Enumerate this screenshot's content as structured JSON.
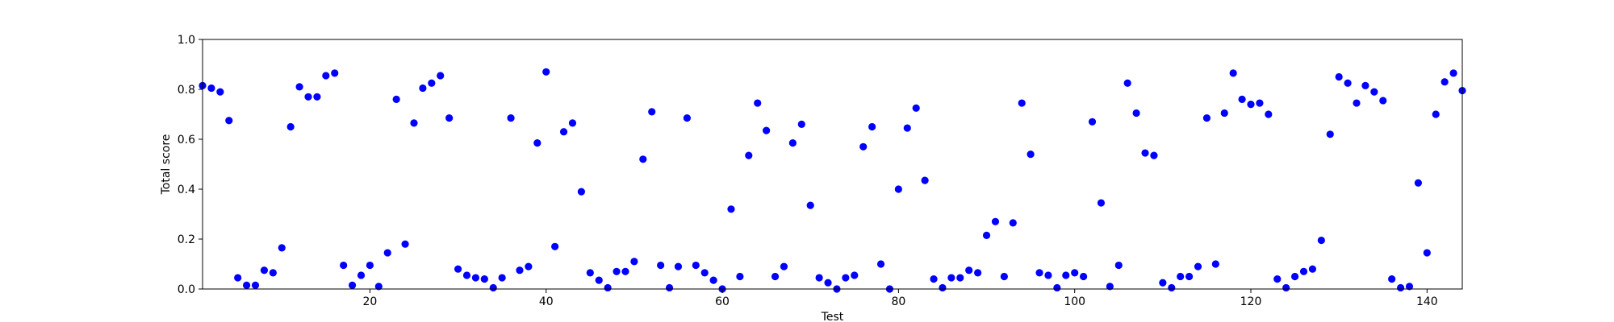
{
  "chart_data": {
    "type": "scatter",
    "title": "",
    "xlabel": "Test",
    "ylabel": "Total score",
    "xlim": [
      1,
      144
    ],
    "ylim": [
      0.0,
      1.0
    ],
    "x_ticks": [
      20,
      40,
      60,
      80,
      100,
      120,
      140
    ],
    "y_ticks": [
      0.0,
      0.2,
      0.4,
      0.6,
      0.8,
      1.0
    ],
    "x_tick_labels": [
      "20",
      "40",
      "60",
      "80",
      "100",
      "120",
      "140"
    ],
    "y_tick_labels": [
      "0.0",
      "0.2",
      "0.4",
      "0.6",
      "0.8",
      "1.0"
    ],
    "grid": false,
    "marker_color": "#0000ff",
    "points": [
      {
        "x": 1,
        "y": 0.815
      },
      {
        "x": 2,
        "y": 0.805
      },
      {
        "x": 3,
        "y": 0.79
      },
      {
        "x": 4,
        "y": 0.675
      },
      {
        "x": 5,
        "y": 0.045
      },
      {
        "x": 6,
        "y": 0.015
      },
      {
        "x": 7,
        "y": 0.015
      },
      {
        "x": 8,
        "y": 0.075
      },
      {
        "x": 9,
        "y": 0.065
      },
      {
        "x": 10,
        "y": 0.165
      },
      {
        "x": 11,
        "y": 0.65
      },
      {
        "x": 12,
        "y": 0.81
      },
      {
        "x": 13,
        "y": 0.77
      },
      {
        "x": 14,
        "y": 0.77
      },
      {
        "x": 15,
        "y": 0.855
      },
      {
        "x": 16,
        "y": 0.865
      },
      {
        "x": 17,
        "y": 0.095
      },
      {
        "x": 18,
        "y": 0.015
      },
      {
        "x": 19,
        "y": 0.055
      },
      {
        "x": 20,
        "y": 0.095
      },
      {
        "x": 21,
        "y": 0.01
      },
      {
        "x": 22,
        "y": 0.145
      },
      {
        "x": 23,
        "y": 0.76
      },
      {
        "x": 24,
        "y": 0.18
      },
      {
        "x": 25,
        "y": 0.665
      },
      {
        "x": 26,
        "y": 0.805
      },
      {
        "x": 27,
        "y": 0.825
      },
      {
        "x": 28,
        "y": 0.855
      },
      {
        "x": 29,
        "y": 0.685
      },
      {
        "x": 30,
        "y": 0.08
      },
      {
        "x": 31,
        "y": 0.055
      },
      {
        "x": 32,
        "y": 0.045
      },
      {
        "x": 33,
        "y": 0.04
      },
      {
        "x": 34,
        "y": 0.005
      },
      {
        "x": 35,
        "y": 0.045
      },
      {
        "x": 36,
        "y": 0.685
      },
      {
        "x": 37,
        "y": 0.075
      },
      {
        "x": 38,
        "y": 0.09
      },
      {
        "x": 39,
        "y": 0.585
      },
      {
        "x": 40,
        "y": 0.87
      },
      {
        "x": 41,
        "y": 0.17
      },
      {
        "x": 42,
        "y": 0.63
      },
      {
        "x": 43,
        "y": 0.665
      },
      {
        "x": 44,
        "y": 0.39
      },
      {
        "x": 45,
        "y": 0.065
      },
      {
        "x": 46,
        "y": 0.035
      },
      {
        "x": 47,
        "y": 0.005
      },
      {
        "x": 48,
        "y": 0.07
      },
      {
        "x": 49,
        "y": 0.07
      },
      {
        "x": 50,
        "y": 0.11
      },
      {
        "x": 51,
        "y": 0.52
      },
      {
        "x": 52,
        "y": 0.71
      },
      {
        "x": 53,
        "y": 0.095
      },
      {
        "x": 54,
        "y": 0.005
      },
      {
        "x": 55,
        "y": 0.09
      },
      {
        "x": 56,
        "y": 0.685
      },
      {
        "x": 57,
        "y": 0.095
      },
      {
        "x": 58,
        "y": 0.065
      },
      {
        "x": 59,
        "y": 0.035
      },
      {
        "x": 60,
        "y": 0.0
      },
      {
        "x": 61,
        "y": 0.32
      },
      {
        "x": 62,
        "y": 0.05
      },
      {
        "x": 63,
        "y": 0.535
      },
      {
        "x": 64,
        "y": 0.745
      },
      {
        "x": 65,
        "y": 0.635
      },
      {
        "x": 66,
        "y": 0.05
      },
      {
        "x": 67,
        "y": 0.09
      },
      {
        "x": 68,
        "y": 0.585
      },
      {
        "x": 69,
        "y": 0.66
      },
      {
        "x": 70,
        "y": 0.335
      },
      {
        "x": 71,
        "y": 0.045
      },
      {
        "x": 72,
        "y": 0.025
      },
      {
        "x": 73,
        "y": 0.0
      },
      {
        "x": 74,
        "y": 0.045
      },
      {
        "x": 75,
        "y": 0.055
      },
      {
        "x": 76,
        "y": 0.57
      },
      {
        "x": 77,
        "y": 0.65
      },
      {
        "x": 78,
        "y": 0.1
      },
      {
        "x": 79,
        "y": 0.0
      },
      {
        "x": 80,
        "y": 0.4
      },
      {
        "x": 81,
        "y": 0.645
      },
      {
        "x": 82,
        "y": 0.725
      },
      {
        "x": 83,
        "y": 0.435
      },
      {
        "x": 84,
        "y": 0.04
      },
      {
        "x": 85,
        "y": 0.005
      },
      {
        "x": 86,
        "y": 0.045
      },
      {
        "x": 87,
        "y": 0.045
      },
      {
        "x": 88,
        "y": 0.075
      },
      {
        "x": 89,
        "y": 0.065
      },
      {
        "x": 90,
        "y": 0.215
      },
      {
        "x": 91,
        "y": 0.27
      },
      {
        "x": 92,
        "y": 0.05
      },
      {
        "x": 93,
        "y": 0.265
      },
      {
        "x": 94,
        "y": 0.745
      },
      {
        "x": 95,
        "y": 0.54
      },
      {
        "x": 96,
        "y": 0.065
      },
      {
        "x": 97,
        "y": 0.055
      },
      {
        "x": 98,
        "y": 0.005
      },
      {
        "x": 99,
        "y": 0.055
      },
      {
        "x": 100,
        "y": 0.065
      },
      {
        "x": 101,
        "y": 0.05
      },
      {
        "x": 102,
        "y": 0.67
      },
      {
        "x": 103,
        "y": 0.345
      },
      {
        "x": 104,
        "y": 0.01
      },
      {
        "x": 105,
        "y": 0.095
      },
      {
        "x": 106,
        "y": 0.825
      },
      {
        "x": 107,
        "y": 0.705
      },
      {
        "x": 108,
        "y": 0.545
      },
      {
        "x": 109,
        "y": 0.535
      },
      {
        "x": 110,
        "y": 0.025
      },
      {
        "x": 111,
        "y": 0.005
      },
      {
        "x": 112,
        "y": 0.05
      },
      {
        "x": 113,
        "y": 0.05
      },
      {
        "x": 114,
        "y": 0.09
      },
      {
        "x": 115,
        "y": 0.685
      },
      {
        "x": 116,
        "y": 0.1
      },
      {
        "x": 117,
        "y": 0.705
      },
      {
        "x": 118,
        "y": 0.865
      },
      {
        "x": 119,
        "y": 0.76
      },
      {
        "x": 120,
        "y": 0.74
      },
      {
        "x": 121,
        "y": 0.745
      },
      {
        "x": 122,
        "y": 0.7
      },
      {
        "x": 123,
        "y": 0.04
      },
      {
        "x": 124,
        "y": 0.005
      },
      {
        "x": 125,
        "y": 0.05
      },
      {
        "x": 126,
        "y": 0.07
      },
      {
        "x": 127,
        "y": 0.08
      },
      {
        "x": 128,
        "y": 0.195
      },
      {
        "x": 129,
        "y": 0.62
      },
      {
        "x": 130,
        "y": 0.85
      },
      {
        "x": 131,
        "y": 0.825
      },
      {
        "x": 132,
        "y": 0.745
      },
      {
        "x": 133,
        "y": 0.815
      },
      {
        "x": 134,
        "y": 0.79
      },
      {
        "x": 135,
        "y": 0.755
      },
      {
        "x": 136,
        "y": 0.04
      },
      {
        "x": 137,
        "y": 0.005
      },
      {
        "x": 138,
        "y": 0.01
      },
      {
        "x": 139,
        "y": 0.425
      },
      {
        "x": 140,
        "y": 0.145
      },
      {
        "x": 141,
        "y": 0.7
      },
      {
        "x": 142,
        "y": 0.83
      },
      {
        "x": 143,
        "y": 0.865
      },
      {
        "x": 144,
        "y": 0.795
      }
    ]
  }
}
